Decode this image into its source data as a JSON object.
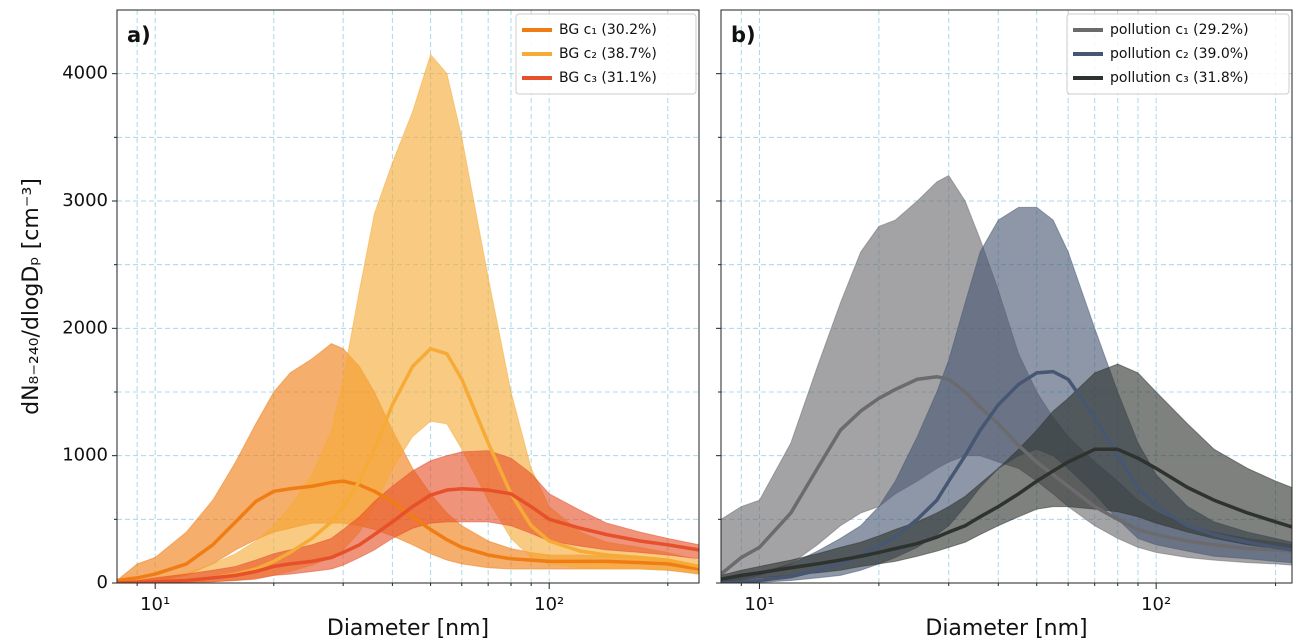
{
  "chart_data": [
    {
      "type": "line",
      "panel_label": "a)",
      "xlabel": "Diameter [nm]",
      "ylabel": "dN₈₋₂₄₀/dlogDₚ [cm⁻³]",
      "xscale": "log",
      "xlim": [
        8,
        240
      ],
      "xticks": [
        {
          "value": 10,
          "label": "10¹"
        },
        {
          "value": 100,
          "label": "10²"
        }
      ],
      "xminor": [
        9,
        20,
        30,
        40,
        50,
        60,
        70,
        80,
        90,
        200
      ],
      "ylim": [
        0,
        4500
      ],
      "yticks": [
        0,
        1000,
        2000,
        3000,
        4000
      ],
      "yminor": [
        500,
        1500,
        2500,
        3500
      ],
      "grid": true,
      "legend": "upper right",
      "x": [
        8,
        9,
        10,
        12,
        14,
        16,
        18,
        20,
        22,
        25,
        28,
        30,
        33,
        36,
        40,
        45,
        50,
        55,
        60,
        70,
        80,
        90,
        100,
        120,
        140,
        170,
        200,
        240
      ],
      "series": [
        {
          "name": "BG c₁ (30.2%)",
          "color": "#f07d14",
          "values": [
            20,
            40,
            70,
            150,
            300,
            480,
            640,
            720,
            740,
            760,
            790,
            800,
            770,
            720,
            640,
            520,
            420,
            340,
            280,
            220,
            190,
            180,
            170,
            170,
            170,
            160,
            150,
            110
          ],
          "upper": [
            20,
            150,
            200,
            400,
            650,
            950,
            1250,
            1500,
            1650,
            1760,
            1880,
            1840,
            1700,
            1500,
            1200,
            900,
            700,
            550,
            450,
            330,
            270,
            240,
            220,
            220,
            210,
            200,
            180,
            140
          ],
          "lower": [
            0,
            10,
            20,
            60,
            150,
            260,
            340,
            400,
            430,
            470,
            470,
            470,
            450,
            420,
            370,
            300,
            230,
            180,
            150,
            120,
            110,
            110,
            110,
            110,
            110,
            110,
            100,
            70
          ]
        },
        {
          "name": "BG c₂ (38.7%)",
          "color": "#f5ab35",
          "values": [
            0,
            5,
            10,
            20,
            40,
            70,
            110,
            170,
            240,
            350,
            480,
            600,
            800,
            1050,
            1400,
            1700,
            1840,
            1800,
            1600,
            1100,
            700,
            450,
            330,
            250,
            220,
            200,
            180,
            130
          ],
          "upper": [
            10,
            20,
            40,
            80,
            150,
            230,
            330,
            450,
            600,
            850,
            1200,
            1600,
            2300,
            2900,
            3300,
            3700,
            4150,
            4000,
            3500,
            2400,
            1500,
            900,
            600,
            400,
            320,
            280,
            240,
            180
          ],
          "lower": [
            0,
            0,
            0,
            5,
            10,
            20,
            40,
            60,
            90,
            140,
            200,
            260,
            400,
            600,
            900,
            1150,
            1270,
            1250,
            1050,
            650,
            350,
            200,
            150,
            120,
            110,
            110,
            100,
            80
          ]
        },
        {
          "name": "BG c₃ (31.1%)",
          "color": "#e6502a",
          "values": [
            0,
            5,
            10,
            20,
            40,
            60,
            90,
            130,
            150,
            170,
            200,
            240,
            300,
            380,
            480,
            600,
            690,
            730,
            740,
            730,
            700,
            600,
            500,
            430,
            380,
            330,
            300,
            260
          ],
          "upper": [
            10,
            20,
            40,
            70,
            100,
            130,
            180,
            230,
            260,
            300,
            350,
            420,
            520,
            640,
            760,
            880,
            960,
            1000,
            1030,
            1040,
            980,
            860,
            700,
            570,
            470,
            400,
            350,
            300
          ],
          "lower": [
            0,
            0,
            0,
            5,
            10,
            20,
            30,
            60,
            70,
            90,
            110,
            140,
            200,
            260,
            350,
            430,
            470,
            480,
            480,
            480,
            450,
            390,
            330,
            290,
            260,
            240,
            220,
            190
          ]
        }
      ]
    },
    {
      "type": "line",
      "panel_label": "b)",
      "xlabel": "Diameter [nm]",
      "xscale": "log",
      "xlim": [
        8,
        220
      ],
      "xticks": [
        {
          "value": 10,
          "label": "10¹"
        },
        {
          "value": 100,
          "label": "10²"
        }
      ],
      "xminor": [
        9,
        20,
        30,
        40,
        50,
        60,
        70,
        80,
        90,
        200
      ],
      "ylim": [
        0,
        4500
      ],
      "grid": true,
      "legend": "upper right",
      "x": [
        8,
        9,
        10,
        12,
        14,
        16,
        18,
        20,
        22,
        25,
        28,
        30,
        33,
        36,
        40,
        45,
        50,
        55,
        60,
        70,
        80,
        90,
        100,
        120,
        140,
        170,
        200,
        220
      ],
      "series": [
        {
          "name": "pollution c₁ (29.2%)",
          "color": "#6b6b6e",
          "values": [
            70,
            200,
            280,
            550,
            900,
            1200,
            1350,
            1450,
            1520,
            1600,
            1620,
            1600,
            1500,
            1380,
            1250,
            1080,
            950,
            850,
            760,
            600,
            500,
            420,
            380,
            330,
            300,
            270,
            260,
            250
          ],
          "upper": [
            500,
            600,
            650,
            1100,
            1700,
            2200,
            2600,
            2800,
            2850,
            3000,
            3150,
            3200,
            3000,
            2700,
            2300,
            1800,
            1500,
            1300,
            1150,
            950,
            800,
            650,
            560,
            450,
            400,
            350,
            320,
            300
          ],
          "lower": [
            0,
            30,
            60,
            150,
            300,
            450,
            550,
            600,
            700,
            800,
            900,
            950,
            1000,
            1000,
            950,
            900,
            800,
            700,
            600,
            450,
            350,
            280,
            240,
            200,
            180,
            160,
            150,
            140
          ]
        },
        {
          "name": "pollution c₂ (39.0%)",
          "color": "#475772",
          "values": [
            0,
            5,
            20,
            50,
            100,
            150,
            220,
            290,
            360,
            500,
            650,
            800,
            1000,
            1200,
            1400,
            1560,
            1650,
            1660,
            1600,
            1300,
            1000,
            750,
            600,
            450,
            380,
            320,
            280,
            260
          ],
          "upper": [
            20,
            50,
            80,
            150,
            250,
            350,
            450,
            600,
            800,
            1150,
            1500,
            1750,
            2200,
            2600,
            2850,
            2950,
            2950,
            2850,
            2600,
            2000,
            1500,
            1100,
            850,
            600,
            480,
            400,
            350,
            320
          ],
          "lower": [
            0,
            0,
            5,
            20,
            40,
            60,
            100,
            150,
            200,
            280,
            380,
            450,
            600,
            750,
            900,
            1000,
            1050,
            1000,
            900,
            700,
            500,
            350,
            300,
            250,
            210,
            190,
            170,
            160
          ]
        },
        {
          "name": "pollution c₃ (31.8%)",
          "color": "#2f332f",
          "values": [
            30,
            60,
            80,
            120,
            150,
            180,
            210,
            240,
            270,
            310,
            360,
            400,
            450,
            520,
            600,
            700,
            800,
            880,
            950,
            1050,
            1050,
            980,
            900,
            750,
            650,
            550,
            480,
            440
          ],
          "upper": [
            60,
            100,
            130,
            180,
            230,
            280,
            320,
            370,
            420,
            480,
            550,
            600,
            680,
            780,
            900,
            1050,
            1200,
            1350,
            1450,
            1650,
            1720,
            1650,
            1500,
            1250,
            1050,
            900,
            800,
            750
          ],
          "lower": [
            0,
            20,
            40,
            60,
            80,
            100,
            130,
            150,
            170,
            210,
            250,
            280,
            320,
            380,
            450,
            520,
            580,
            600,
            600,
            580,
            560,
            520,
            470,
            400,
            350,
            300,
            270,
            250
          ]
        }
      ]
    }
  ]
}
